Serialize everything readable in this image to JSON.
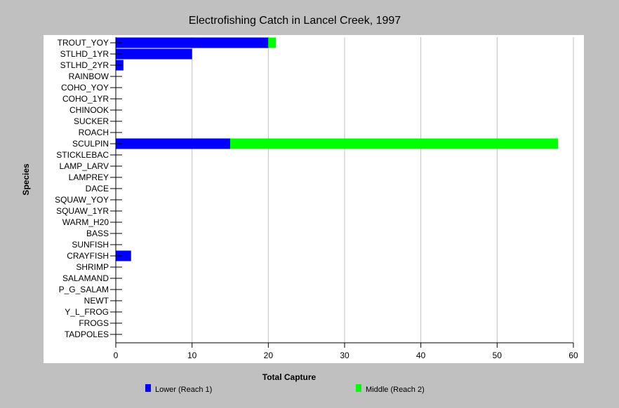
{
  "chart_data": {
    "type": "bar",
    "orientation": "horizontal",
    "stacked": true,
    "title": "Electrofishing Catch in Lancel Creek, 1997",
    "xlabel": "Total Capture",
    "ylabel": "Species",
    "xlim": [
      0,
      60
    ],
    "xticks": [
      "0",
      "10",
      "20",
      "30",
      "40",
      "50",
      "60"
    ],
    "grid": "vertical",
    "legend_position": "bottom",
    "categories": [
      "TROUT_YOY",
      "STLHD_1YR",
      "STLHD_2YR",
      "RAINBOW",
      "COHO_YOY",
      "COHO_1YR",
      "CHINOOK",
      "SUCKER",
      "ROACH",
      "SCULPIN",
      "STICKLEBAC",
      "LAMP_LARV",
      "LAMPREY",
      "DACE",
      "SQUAW_YOY",
      "SQUAW_1YR",
      "WARM_H20",
      "BASS",
      "SUNFISH",
      "CRAYFISH",
      "SHRIMP",
      "SALAMAND",
      "P_G_SALAM",
      "NEWT",
      "Y_L_FROG",
      "FROGS",
      "TADPOLES"
    ],
    "series": [
      {
        "name": "Lower (Reach 1)",
        "color": "#0000ff",
        "values": [
          20,
          10,
          1,
          0,
          0,
          0,
          0,
          0,
          0,
          15,
          0,
          0,
          0,
          0,
          0,
          0,
          0,
          0,
          0,
          2,
          0,
          0,
          0,
          0,
          0,
          0,
          0
        ]
      },
      {
        "name": "Middle (Reach 2)",
        "color": "#00ff00",
        "values": [
          1,
          0,
          0,
          0,
          0,
          0,
          0,
          0,
          0,
          43,
          0,
          0,
          0,
          0,
          0,
          0,
          0,
          0,
          0,
          0,
          0,
          0,
          0,
          0,
          0,
          0,
          0
        ]
      }
    ]
  },
  "colors": {
    "background": "#c0c0c0",
    "plot_background": "#ffffff",
    "gridline": "#c0c0c0"
  }
}
